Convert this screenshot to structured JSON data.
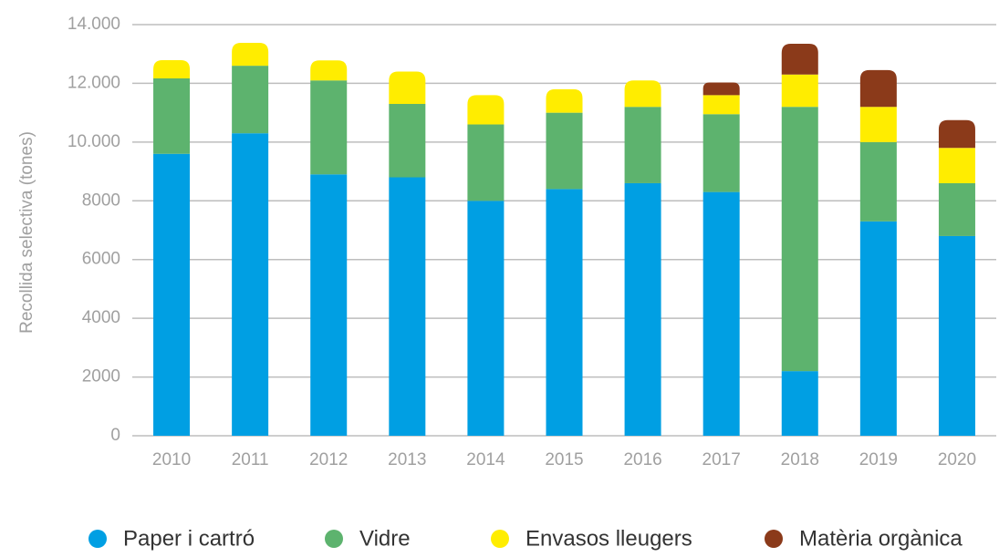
{
  "chart_data": {
    "type": "stacked_bar",
    "y_label": "Recollida selectiva (tones)",
    "categories": [
      "2010",
      "2011",
      "2012",
      "2013",
      "2014",
      "2015",
      "2016",
      "2017",
      "2018",
      "2019",
      "2020"
    ],
    "series": [
      {
        "name": "Paper i cartró",
        "color": "#009fe3",
        "values": [
          9600,
          10300,
          8900,
          8800,
          8000,
          8400,
          8600,
          8300,
          2200,
          7300,
          6800
        ]
      },
      {
        "name": "Vidre",
        "color": "#5db36e",
        "values": [
          2570,
          2300,
          3200,
          2500,
          2600,
          2600,
          2600,
          2650,
          9000,
          2700,
          1800
        ]
      },
      {
        "name": "Envasos lleugers",
        "color": "#ffed00",
        "values": [
          620,
          780,
          680,
          1100,
          1000,
          800,
          900,
          650,
          1100,
          1200,
          1200
        ]
      },
      {
        "name": "Matèria orgànica",
        "color": "#8b3a1a",
        "values": [
          null,
          null,
          null,
          null,
          null,
          null,
          null,
          430,
          1050,
          1250,
          950
        ]
      }
    ],
    "ylim": [
      0,
      14000
    ],
    "yticks": [
      0,
      2000,
      4000,
      6000,
      8000,
      {
        "value": 10000,
        "label": "10.000"
      },
      {
        "value": 12000,
        "label": "12.000"
      },
      {
        "value": 14000,
        "label": "14.000"
      }
    ],
    "grid": true
  }
}
